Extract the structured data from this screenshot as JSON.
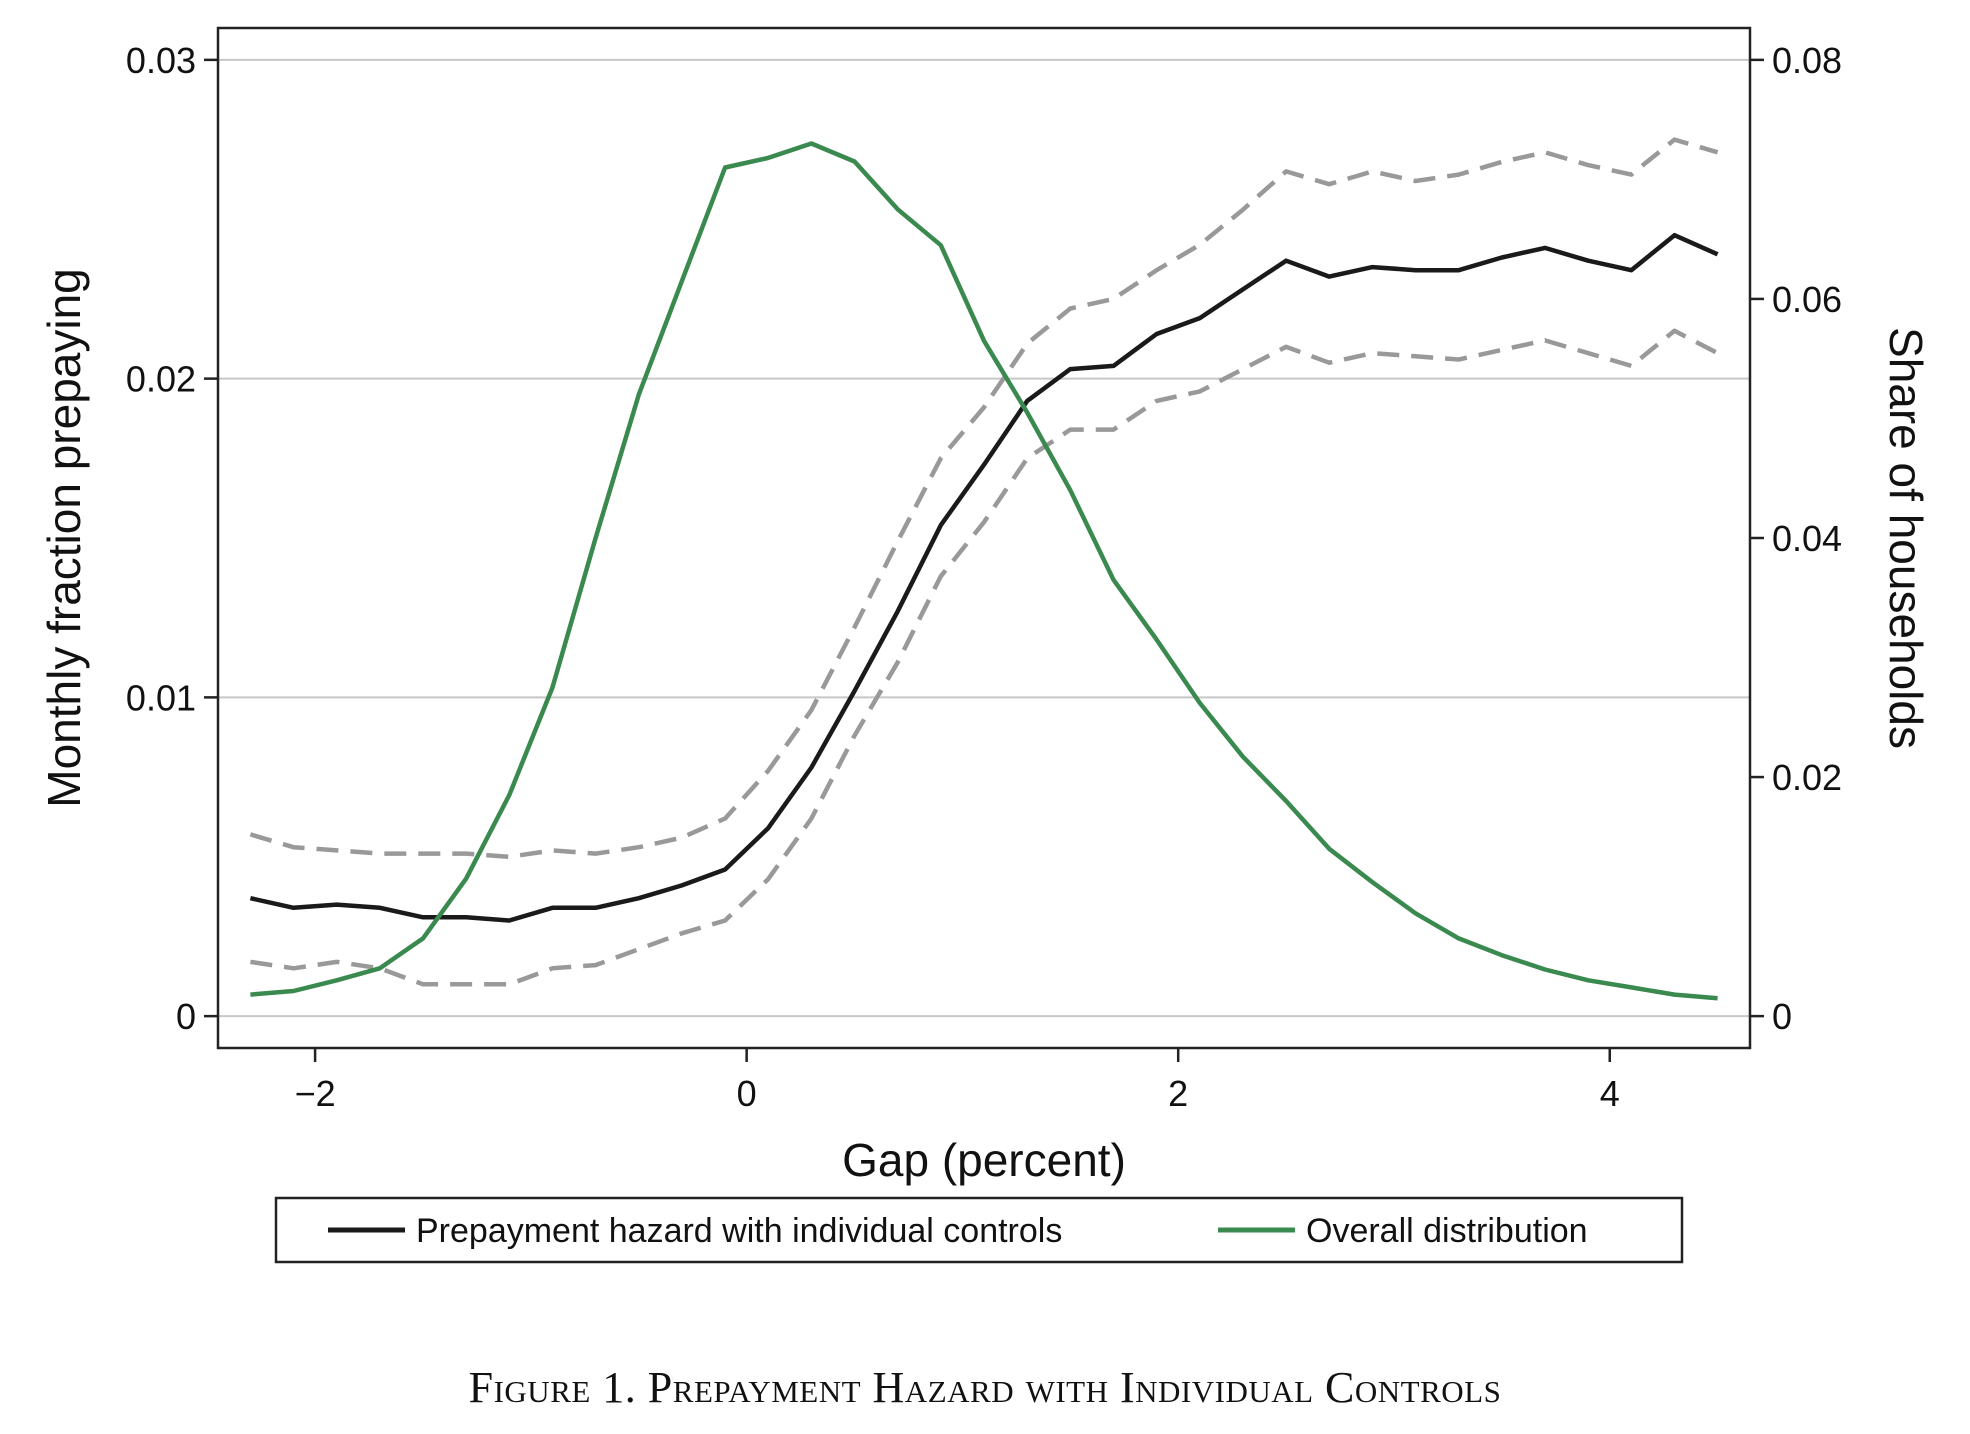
{
  "chart_data": {
    "type": "line",
    "x": [
      -2.3,
      -2.1,
      -1.9,
      -1.7,
      -1.5,
      -1.3,
      -1.1,
      -0.9,
      -0.7,
      -0.5,
      -0.3,
      -0.1,
      0.1,
      0.3,
      0.5,
      0.7,
      0.9,
      1.1,
      1.3,
      1.5,
      1.7,
      1.9,
      2.1,
      2.3,
      2.5,
      2.7,
      2.9,
      3.1,
      3.3,
      3.5,
      3.7,
      3.9,
      4.1,
      4.3,
      4.5
    ],
    "xlabel": "Gap (percent)",
    "xlim": [
      -2.45,
      4.65
    ],
    "xticks": [
      -2,
      0,
      2,
      4
    ],
    "xtick_labels": [
      "−2",
      "0",
      "2",
      "4"
    ],
    "ylabel_left": "Monthly fraction prepaying",
    "ylim_left": [
      -0.001,
      0.031
    ],
    "yticks_left": [
      0,
      0.01,
      0.02,
      0.03
    ],
    "ytick_labels_left": [
      "0",
      "0.01",
      "0.02",
      "0.03"
    ],
    "ylabel_right": "Share of households",
    "ylim_right": [
      -0.002667,
      0.082667
    ],
    "yticks_right": [
      0,
      0.02,
      0.04,
      0.06,
      0.08
    ],
    "ytick_labels_right": [
      "0",
      "0.02",
      "0.04",
      "0.06",
      "0.08"
    ],
    "grid": "horizontal",
    "legend_position": "bottom",
    "series": [
      {
        "name": "Prepayment hazard with individual controls",
        "axis": "left",
        "color": "#1a1a1a",
        "style": "solid",
        "values": [
          0.0037,
          0.0034,
          0.0035,
          0.0034,
          0.0031,
          0.0031,
          0.003,
          0.0034,
          0.0034,
          0.0037,
          0.0041,
          0.0046,
          0.0059,
          0.0078,
          0.0102,
          0.0127,
          0.0154,
          0.0173,
          0.0193,
          0.0203,
          0.0204,
          0.0214,
          0.0219,
          0.0228,
          0.0237,
          0.0232,
          0.0235,
          0.0234,
          0.0234,
          0.0238,
          0.0241,
          0.0237,
          0.0234,
          0.0245,
          0.0239
        ]
      },
      {
        "name": "",
        "axis": "left",
        "color": "#999999",
        "style": "dashed",
        "values": [
          0.0057,
          0.0053,
          0.0052,
          0.0051,
          0.0051,
          0.0051,
          0.005,
          0.0052,
          0.0051,
          0.0053,
          0.0056,
          0.0062,
          0.0077,
          0.0096,
          0.0122,
          0.0149,
          0.0175,
          0.0191,
          0.0211,
          0.0222,
          0.0225,
          0.0234,
          0.0242,
          0.0253,
          0.0265,
          0.0261,
          0.0265,
          0.0262,
          0.0264,
          0.0268,
          0.0271,
          0.0267,
          0.0264,
          0.0275,
          0.0271
        ]
      },
      {
        "name": "",
        "axis": "left",
        "color": "#999999",
        "style": "dashed",
        "values": [
          0.0017,
          0.0015,
          0.0017,
          0.0015,
          0.001,
          0.001,
          0.001,
          0.0015,
          0.0016,
          0.0021,
          0.0026,
          0.003,
          0.0043,
          0.0062,
          0.0088,
          0.0111,
          0.0138,
          0.0155,
          0.0175,
          0.0184,
          0.0184,
          0.0193,
          0.0196,
          0.0203,
          0.021,
          0.0205,
          0.0208,
          0.0207,
          0.0206,
          0.0209,
          0.0212,
          0.0208,
          0.0204,
          0.0215,
          0.0208
        ]
      },
      {
        "name": "Overall distribution",
        "axis": "right",
        "color": "#3a8a4f",
        "style": "solid",
        "values": [
          0.0018,
          0.0021,
          0.003,
          0.004,
          0.0065,
          0.0115,
          0.0185,
          0.0275,
          0.04,
          0.052,
          0.0615,
          0.071,
          0.0718,
          0.073,
          0.0715,
          0.0675,
          0.0645,
          0.0565,
          0.0505,
          0.044,
          0.0365,
          0.0315,
          0.0262,
          0.0217,
          0.018,
          0.014,
          0.0112,
          0.0086,
          0.0065,
          0.0051,
          0.0039,
          0.003,
          0.0024,
          0.0018,
          0.0015
        ]
      }
    ]
  },
  "legend": {
    "entries": [
      {
        "label": "Prepayment hazard with individual controls",
        "color": "#1a1a1a"
      },
      {
        "label": "Overall distribution",
        "color": "#3a8a4f"
      }
    ]
  },
  "caption": "Figure 1. Prepayment Hazard with Individual Controls"
}
